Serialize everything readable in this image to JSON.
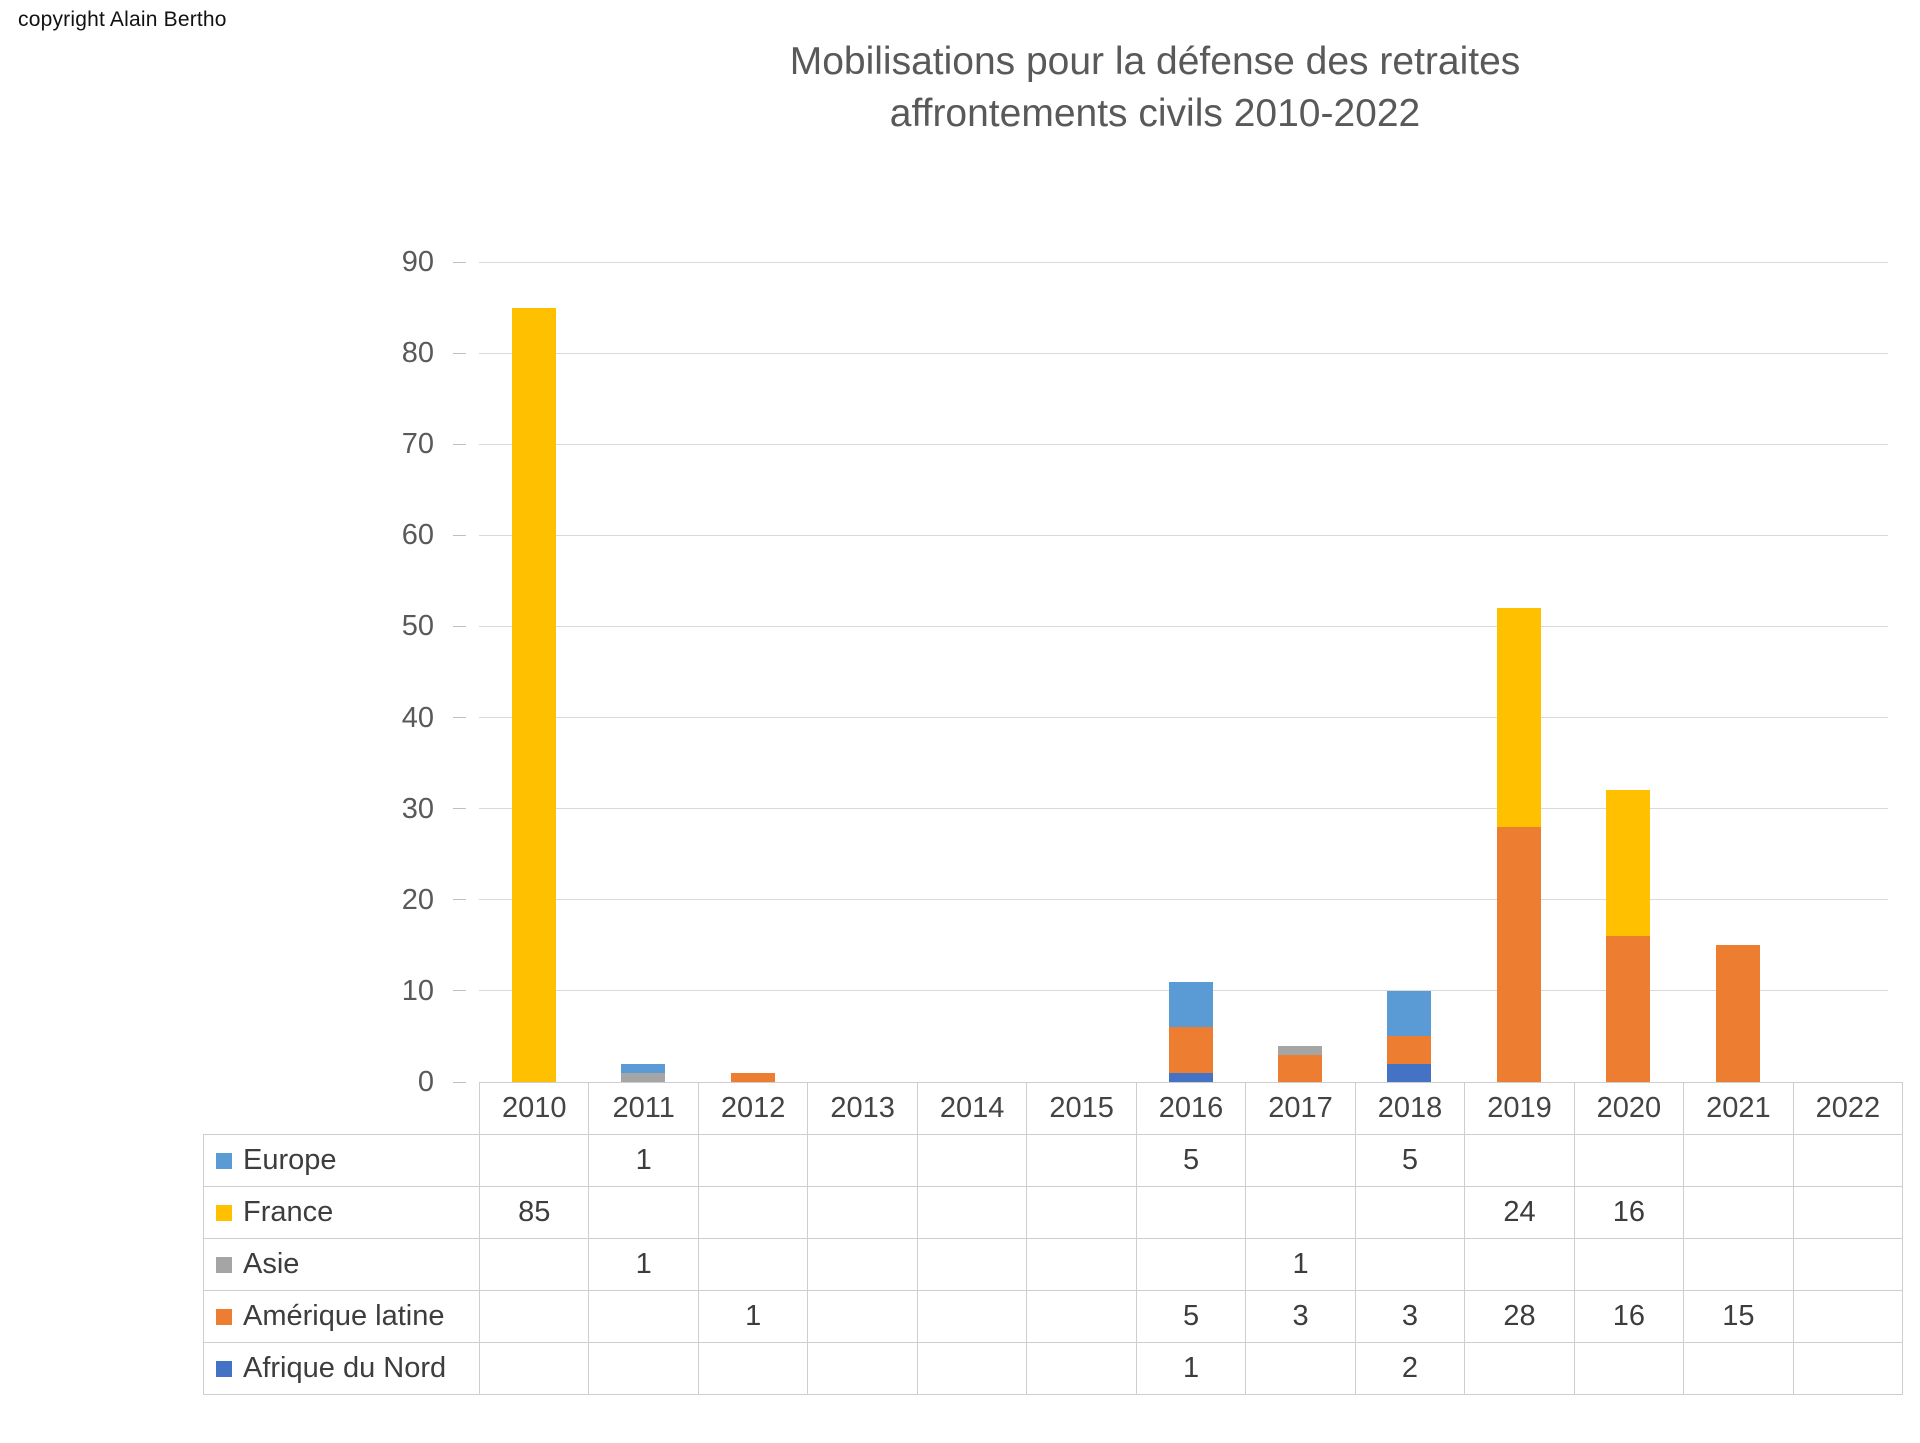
{
  "copyright": "copyright Alain Bertho",
  "title": {
    "line1": "Mobilisations pour la défense des retraites",
    "line2": "affrontements civils 2010-2022"
  },
  "colors": {
    "gridline": "#d9d9d9",
    "table_border": "#cfcdcd",
    "title_text": "#595959",
    "axis_text": "#595959",
    "table_text": "#3d3d3d"
  },
  "chart_data": {
    "type": "bar",
    "stacked": true,
    "title": "Mobilisations pour la défense des retraites affrontements civils 2010-2022",
    "categories": [
      "2010",
      "2011",
      "2012",
      "2013",
      "2014",
      "2015",
      "2016",
      "2017",
      "2018",
      "2019",
      "2020",
      "2021",
      "2022"
    ],
    "series": [
      {
        "name": "Europe",
        "color": "#5B9BD5",
        "values": [
          0,
          1,
          0,
          0,
          0,
          0,
          5,
          0,
          5,
          0,
          0,
          0,
          0
        ]
      },
      {
        "name": "France",
        "color": "#FFC000",
        "values": [
          85,
          0,
          0,
          0,
          0,
          0,
          0,
          0,
          0,
          24,
          16,
          0,
          0
        ]
      },
      {
        "name": "Asie",
        "color": "#A5A5A5",
        "values": [
          0,
          1,
          0,
          0,
          0,
          0,
          0,
          1,
          0,
          0,
          0,
          0,
          0
        ]
      },
      {
        "name": "Amérique latine",
        "color": "#ED7D31",
        "values": [
          0,
          0,
          1,
          0,
          0,
          0,
          5,
          3,
          3,
          28,
          16,
          15,
          0
        ]
      },
      {
        "name": "Afrique du Nord",
        "color": "#4472C4",
        "values": [
          0,
          0,
          0,
          0,
          0,
          0,
          1,
          0,
          2,
          0,
          0,
          0,
          0
        ]
      }
    ],
    "stack_order_bottom_to_top": [
      "Afrique du Nord",
      "Amérique latine",
      "Asie",
      "France",
      "Europe"
    ],
    "xlabel": "",
    "ylabel": "",
    "ylim": [
      0,
      90
    ],
    "yticks": [
      0,
      10,
      20,
      30,
      40,
      50,
      60,
      70,
      80,
      90
    ],
    "grid": "horizontal",
    "legend_position": "table-left"
  }
}
